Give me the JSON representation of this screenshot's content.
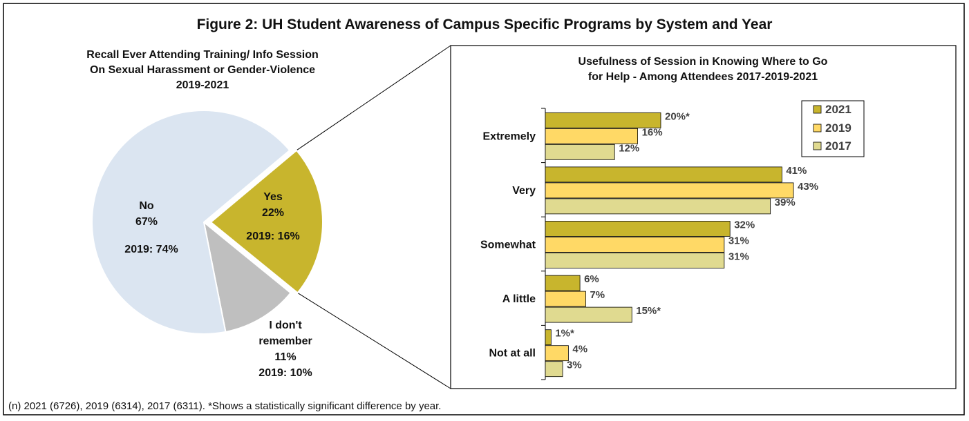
{
  "figure": {
    "title": "Figure 2: UH Student Awareness of Campus Specific Programs by System and Year",
    "footnote": "(n) 2021 (6726), 2019 (6314), 2017 (6311). *Shows a statistically significant difference by year."
  },
  "colors": {
    "no": "#dbe5f1",
    "yes": "#c8b52d",
    "dont_remember": "#bfbfbf",
    "s2021": "#c8b52d",
    "s2019": "#ffd966",
    "s2017": "#e0da90",
    "text": "#111111",
    "value_text": "#404040"
  },
  "chart_data": [
    {
      "type": "pie",
      "title_lines": [
        "Recall Ever Attending Training/ Info Session",
        "On Sexual Harassment or Gender-Violence",
        "2019-2021"
      ],
      "slices": [
        {
          "name": "Yes",
          "value": 22,
          "value_label": "22%",
          "compare_label": "2019: 16%",
          "color_key": "yes",
          "exploded": true
        },
        {
          "name": "I don't remember",
          "label_lines": [
            "I don't",
            "remember"
          ],
          "value": 11,
          "value_label": "11%",
          "compare_label": "2019: 10%",
          "color_key": "dont_remember",
          "exploded": false
        },
        {
          "name": "No",
          "value": 67,
          "value_label": "67%",
          "compare_label": "2019: 74%",
          "color_key": "no",
          "exploded": false
        }
      ]
    },
    {
      "type": "bar",
      "orientation": "horizontal",
      "title_lines": [
        "Usefulness of Session in Knowing Where to Go",
        "for Help - Among Attendees 2017-2019-2021"
      ],
      "categories": [
        "Extremely",
        "Very",
        "Somewhat",
        "A little",
        "Not at all"
      ],
      "series": [
        {
          "name": "2021",
          "color_key": "s2021",
          "values": [
            20,
            41,
            32,
            6,
            1
          ],
          "labels": [
            "20%*",
            "41%",
            "32%",
            "6%",
            "1%*"
          ]
        },
        {
          "name": "2019",
          "color_key": "s2019",
          "values": [
            16,
            43,
            31,
            7,
            4
          ],
          "labels": [
            "16%",
            "43%",
            "31%",
            "7%",
            "4%"
          ]
        },
        {
          "name": "2017",
          "color_key": "s2017",
          "values": [
            12,
            39,
            31,
            15,
            3
          ],
          "labels": [
            "12%",
            "39%",
            "31%",
            "15%*",
            "3%"
          ]
        }
      ],
      "xlim": [
        0,
        50
      ],
      "grid": false,
      "legend": "top-right"
    }
  ]
}
